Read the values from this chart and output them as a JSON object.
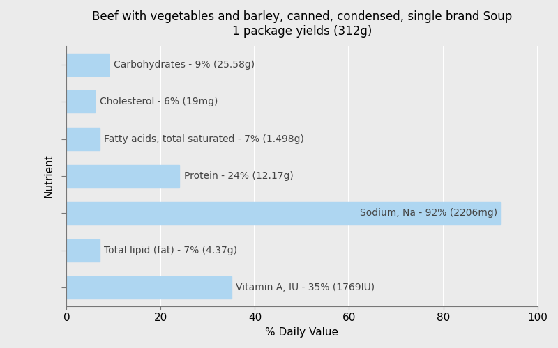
{
  "title": "Beef with vegetables and barley, canned, condensed, single brand Soup\n1 package yields (312g)",
  "xlabel": "% Daily Value",
  "ylabel": "Nutrient",
  "background_color": "#ebebeb",
  "bar_color": "#aed6f1",
  "bar_edgecolor": "#aed6f1",
  "grid_color": "#ffffff",
  "labels": [
    "Carbohydrates - 9% (25.58g)",
    "Cholesterol - 6% (19mg)",
    "Fatty acids, total saturated - 7% (1.498g)",
    "Protein - 24% (12.17g)",
    "Sodium, Na - 92% (2206mg)",
    "Total lipid (fat) - 7% (4.37g)",
    "Vitamin A, IU - 35% (1769IU)"
  ],
  "values": [
    9,
    6,
    7,
    24,
    92,
    7,
    35
  ],
  "sodium_index": 4,
  "xlim": [
    0,
    100
  ],
  "xticks": [
    0,
    20,
    40,
    60,
    80,
    100
  ],
  "title_fontsize": 12,
  "label_fontsize": 10,
  "axis_fontsize": 11,
  "tick_fontsize": 11,
  "label_color": "#444444",
  "bar_height": 0.6
}
